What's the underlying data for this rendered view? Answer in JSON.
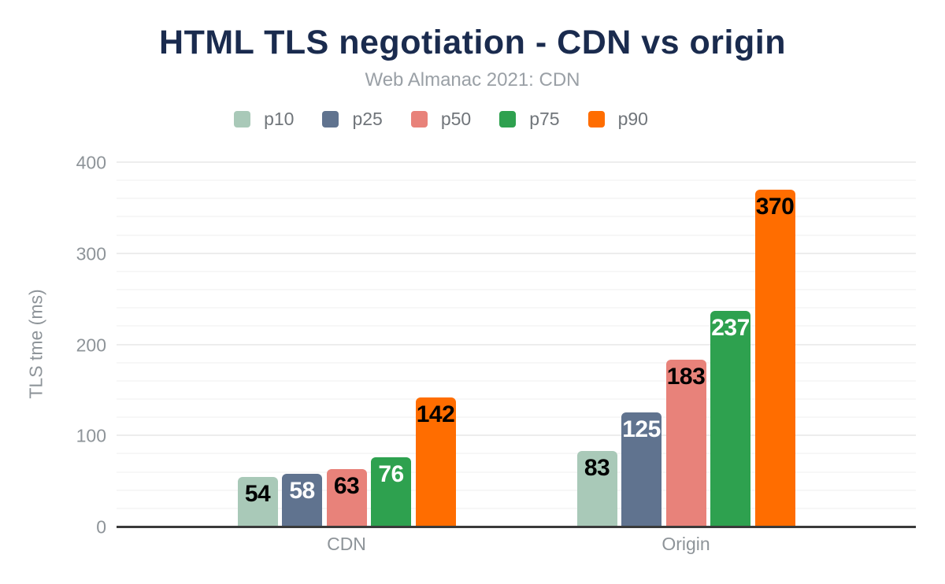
{
  "title": "HTML TLS negotiation - CDN vs origin",
  "subtitle": "Web Almanac 2021: CDN",
  "chart_data": {
    "type": "bar",
    "title": "HTML TLS negotiation - CDN vs origin",
    "subtitle": "Web Almanac 2021: CDN",
    "categories": [
      "CDN",
      "Origin"
    ],
    "series": [
      {
        "name": "p10",
        "color": "#a9c9b8",
        "label_color": "#000000",
        "values": [
          54,
          83
        ]
      },
      {
        "name": "p25",
        "color": "#60738f",
        "label_color": "#ffffff",
        "values": [
          58,
          125
        ]
      },
      {
        "name": "p50",
        "color": "#e8827a",
        "label_color": "#000000",
        "values": [
          63,
          183
        ]
      },
      {
        "name": "p75",
        "color": "#2ea14f",
        "label_color": "#ffffff",
        "values": [
          76,
          237
        ]
      },
      {
        "name": "p90",
        "color": "#ff6d00",
        "label_color": "#000000",
        "values": [
          142,
          370
        ]
      }
    ],
    "xlabel": "",
    "ylabel": "TLS tme (ms)",
    "yticks": [
      0,
      100,
      200,
      300,
      400
    ],
    "ylim": [
      0,
      400
    ],
    "grid": {
      "minor_step": 20,
      "major_step": 100,
      "visible": true
    },
    "legend_position": "top",
    "value_labels": "inside-top"
  },
  "colors": {
    "title": "#1a2b4e",
    "subtitle": "#9aa0a6",
    "axis_text": "#8e9499",
    "legend_text": "#70757a",
    "axis_line": "#3a3a3a",
    "gridline_minor": "#f7f7f7",
    "gridline_major": "#ededed",
    "background": "#ffffff"
  }
}
